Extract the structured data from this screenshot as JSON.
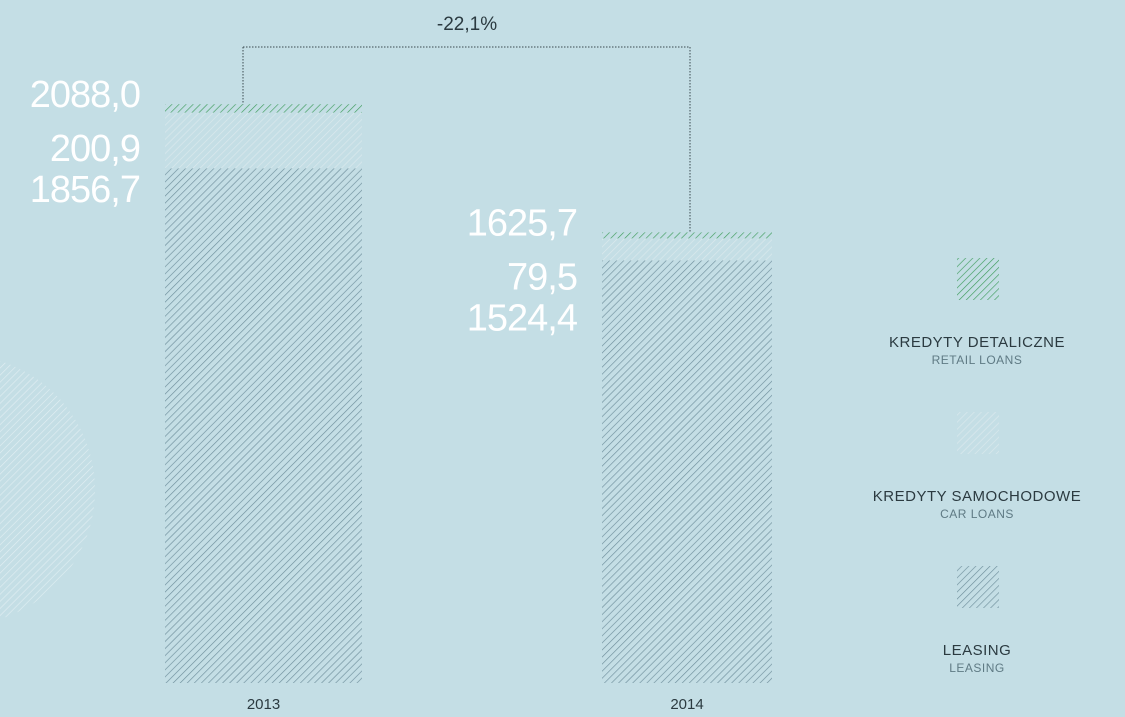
{
  "chart_data": {
    "type": "stacked-bar",
    "annotation": "-22,1%",
    "categories": [
      "2013",
      "2014"
    ],
    "totals": [
      2088.0,
      1625.7
    ],
    "total_labels": [
      "2088,0",
      "1625,7"
    ],
    "series": [
      {
        "name": "LEASING",
        "name_en": "LEASING",
        "color": "#6f8f9c",
        "values": [
          1856.7,
          1524.4
        ],
        "value_labels": [
          "1856,7",
          "1524,4"
        ]
      },
      {
        "name": "KREDYTY SAMOCHODOWE",
        "name_en": "CAR LOANS",
        "color": "#dbe9ed",
        "values": [
          200.9,
          79.5
        ],
        "value_labels": [
          "200,9",
          "79,5"
        ]
      },
      {
        "name": "KREDYTY DETALICZNE",
        "name_en": "RETAIL LOANS",
        "color": "#3f9d5d",
        "values": [
          30.4,
          21.8
        ]
      }
    ]
  }
}
